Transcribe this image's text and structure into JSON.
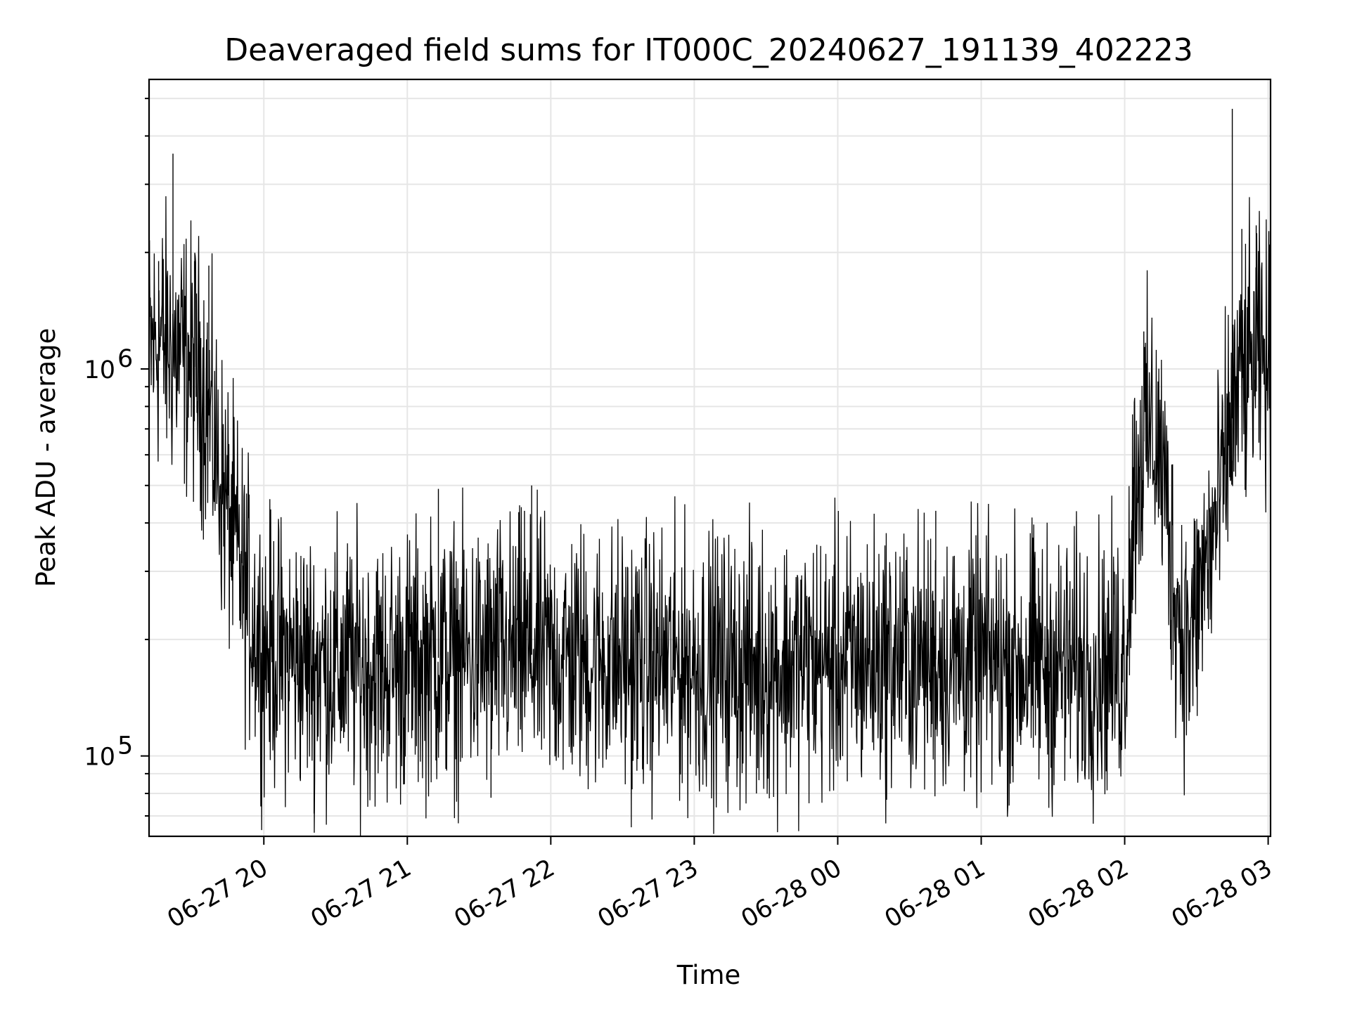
{
  "chart_data": {
    "type": "line",
    "title": "Deaveraged field sums for IT000C_20240627_191139_402223",
    "xlabel": "Time",
    "ylabel": "Peak ADU - average",
    "yscale": "log",
    "ylim": [
      62000,
      5600000
    ],
    "xlim": [
      "2024-06-27T19:12:00",
      "2024-06-28T03:01:00"
    ],
    "grid": true,
    "legend": "none",
    "line_color": "#000000",
    "x_ticks": [
      {
        "label": "06-27 20",
        "t": "2024-06-27T20:00:00"
      },
      {
        "label": "06-27 21",
        "t": "2024-06-27T21:00:00"
      },
      {
        "label": "06-27 22",
        "t": "2024-06-27T22:00:00"
      },
      {
        "label": "06-27 23",
        "t": "2024-06-27T23:00:00"
      },
      {
        "label": "06-28 00",
        "t": "2024-06-28T00:00:00"
      },
      {
        "label": "06-28 01",
        "t": "2024-06-28T01:00:00"
      },
      {
        "label": "06-28 02",
        "t": "2024-06-28T02:00:00"
      },
      {
        "label": "06-28 03",
        "t": "2024-06-28T03:00:00"
      }
    ],
    "y_ticks": [
      {
        "value": 100000,
        "base": "10",
        "exp": "5"
      },
      {
        "value": 1000000,
        "base": "10",
        "exp": "6"
      }
    ],
    "series": [
      {
        "x": [
          "2024-06-27T19:12:00",
          "2024-06-27T19:16:00",
          "2024-06-27T19:20:00",
          "2024-06-27T19:24:00",
          "2024-06-27T19:28:00",
          "2024-06-27T19:32:00",
          "2024-06-27T19:36:00",
          "2024-06-27T19:40:00",
          "2024-06-27T19:44:00",
          "2024-06-27T19:48:00",
          "2024-06-27T19:52:00",
          "2024-06-27T19:56:00",
          "2024-06-27T20:00:00",
          "2024-06-27T20:10:00",
          "2024-06-27T20:20:00",
          "2024-06-27T20:30:00",
          "2024-06-27T20:40:00",
          "2024-06-27T20:50:00",
          "2024-06-27T21:00:00",
          "2024-06-27T21:15:00",
          "2024-06-27T21:30:00",
          "2024-06-27T21:45:00",
          "2024-06-27T22:00:00",
          "2024-06-27T22:20:00",
          "2024-06-27T22:40:00",
          "2024-06-27T23:00:00",
          "2024-06-27T23:20:00",
          "2024-06-27T23:40:00",
          "2024-06-28T00:00:00",
          "2024-06-28T00:20:00",
          "2024-06-28T00:40:00",
          "2024-06-28T01:00:00",
          "2024-06-28T01:20:00",
          "2024-06-28T01:40:00",
          "2024-06-28T02:00:00",
          "2024-06-28T02:04:00",
          "2024-06-28T02:08:00",
          "2024-06-28T02:12:00",
          "2024-06-28T02:16:00",
          "2024-06-28T02:20:00",
          "2024-06-28T02:24:00",
          "2024-06-28T02:28:00",
          "2024-06-28T02:32:00",
          "2024-06-28T02:36:00",
          "2024-06-28T02:40:00",
          "2024-06-28T02:44:00",
          "2024-06-28T02:48:00",
          "2024-06-28T02:52:00",
          "2024-06-28T02:56:00",
          "2024-06-28T03:00:00"
        ],
        "y": [
          1100000,
          1200000,
          1150000,
          1100000,
          1050000,
          1000000,
          850000,
          600000,
          450000,
          350000,
          270000,
          220000,
          190000,
          180000,
          175000,
          170000,
          172000,
          168000,
          175000,
          180000,
          178000,
          185000,
          180000,
          178000,
          175000,
          172000,
          170000,
          172000,
          175000,
          180000,
          178000,
          175000,
          172000,
          170000,
          175000,
          500000,
          650000,
          700000,
          550000,
          300000,
          210000,
          200000,
          280000,
          350000,
          450000,
          700000,
          900000,
          1000000,
          1050000,
          1000000
        ]
      }
    ],
    "spikes": [
      {
        "t": "2024-06-27T19:22:00",
        "y": 3600000
      },
      {
        "t": "2024-06-27T19:16:00",
        "y": 1900000
      },
      {
        "t": "2024-06-27T19:31:00",
        "y": 1900000
      },
      {
        "t": "2024-06-27T19:37:00",
        "y": 1850000
      },
      {
        "t": "2024-06-27T20:21:00",
        "y": 71000
      },
      {
        "t": "2024-06-27T21:13:00",
        "y": 490000
      },
      {
        "t": "2024-06-27T21:52:00",
        "y": 500000
      },
      {
        "t": "2024-06-27T21:35:00",
        "y": 78000
      },
      {
        "t": "2024-06-27T21:49:00",
        "y": 430000
      },
      {
        "t": "2024-06-27T22:34:00",
        "y": 82000
      },
      {
        "t": "2024-06-27T23:26:00",
        "y": 80000
      },
      {
        "t": "2024-06-28T00:04:00",
        "y": 86000
      },
      {
        "t": "2024-06-28T00:41:00",
        "y": 430000
      },
      {
        "t": "2024-06-28T01:11:00",
        "y": 86000
      },
      {
        "t": "2024-06-28T02:08:00",
        "y": 1250000
      },
      {
        "t": "2024-06-28T02:45:00",
        "y": 4700000
      },
      {
        "t": "2024-06-28T02:49:00",
        "y": 2300000
      },
      {
        "t": "2024-06-28T02:55:00",
        "y": 2350000
      }
    ]
  }
}
